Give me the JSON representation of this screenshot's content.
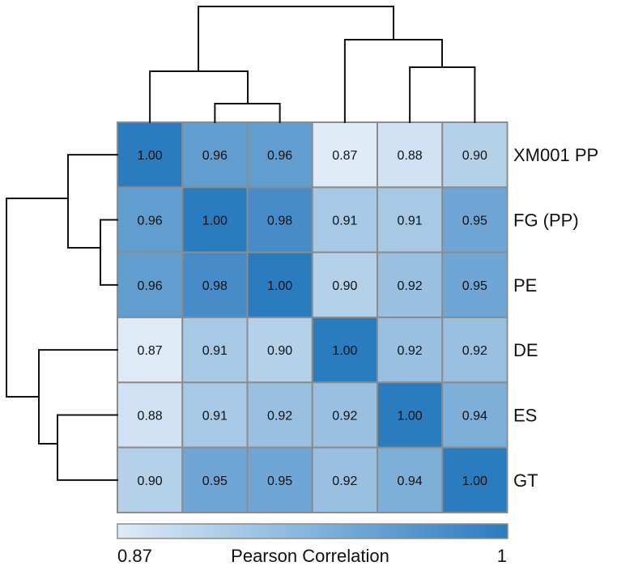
{
  "chart_data": {
    "type": "heatmap",
    "title": "",
    "row_labels": [
      "XM001 PP",
      "FG (PP)",
      "PE",
      "DE",
      "ES",
      "GT"
    ],
    "matrix": [
      [
        1.0,
        0.96,
        0.96,
        0.87,
        0.88,
        0.9
      ],
      [
        0.96,
        1.0,
        0.98,
        0.91,
        0.91,
        0.95
      ],
      [
        0.96,
        0.98,
        1.0,
        0.9,
        0.92,
        0.95
      ],
      [
        0.87,
        0.91,
        0.9,
        1.0,
        0.92,
        0.92
      ],
      [
        0.88,
        0.91,
        0.92,
        0.92,
        1.0,
        0.94
      ],
      [
        0.9,
        0.95,
        0.95,
        0.92,
        0.94,
        1.0
      ]
    ],
    "value_labels": [
      [
        "1.00",
        "0.96",
        "0.96",
        "0.87",
        "0.88",
        "0.90"
      ],
      [
        "0.96",
        "1.00",
        "0.98",
        "0.91",
        "0.91",
        "0.95"
      ],
      [
        "0.96",
        "0.98",
        "1.00",
        "0.90",
        "0.92",
        "0.95"
      ],
      [
        "0.87",
        "0.91",
        "0.90",
        "1.00",
        "0.92",
        "0.92"
      ],
      [
        "0.88",
        "0.91",
        "0.92",
        "0.92",
        "1.00",
        "0.94"
      ],
      [
        "0.90",
        "0.95",
        "0.95",
        "0.92",
        "0.94",
        "1.00"
      ]
    ],
    "color_scale": {
      "min": 0.87,
      "max": 1.0,
      "min_color": "#deebf7",
      "max_color": "#2b7bbf"
    },
    "legend": {
      "label": "Pearson Correlation",
      "min_label": "0.87",
      "max_label": "1",
      "placement": "bottom"
    },
    "dendrogram": {
      "method": "hierarchical clustering",
      "clusters": [
        [
          "XM001 PP",
          [
            "FG (PP)",
            "PE"
          ]
        ],
        [
          "DE",
          [
            "ES",
            "GT"
          ]
        ]
      ]
    }
  }
}
